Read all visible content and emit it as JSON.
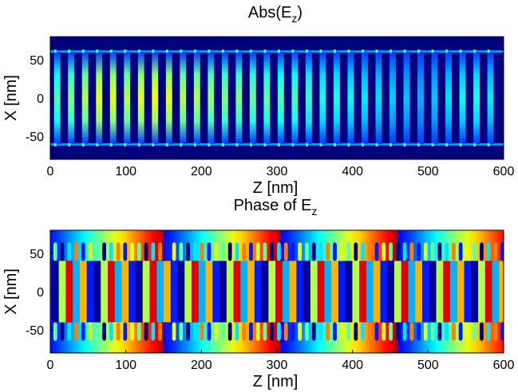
{
  "chart_data": [
    {
      "type": "heatmap",
      "title": "Abs(E",
      "title_subscript": "z",
      "title_suffix": ")",
      "xlabel": "Z [nm]",
      "ylabel": "X [nm]",
      "xlim": [
        0,
        600
      ],
      "ylim": [
        -80,
        80
      ],
      "xticks": [
        0,
        100,
        200,
        300,
        400,
        500,
        600
      ],
      "yticks": [
        50,
        0,
        -50
      ],
      "colormap": "jet",
      "waveguide_x": [
        -60,
        60
      ],
      "stripes": {
        "start_z": 5,
        "period_nm": 18.5,
        "count": 32
      },
      "stripe_peak_levels": [
        0.45,
        0.5,
        0.55,
        0.6,
        0.6,
        0.55,
        0.6,
        0.62,
        0.6,
        0.55,
        0.55,
        0.52,
        0.5,
        0.5,
        0.48,
        0.47,
        0.45,
        0.45,
        0.42,
        0.4,
        0.4,
        0.38,
        0.36,
        0.35,
        0.33,
        0.32,
        0.3,
        0.32,
        0.35,
        0.38,
        0.4,
        0.36
      ]
    },
    {
      "type": "heatmap",
      "title": "Phase of E",
      "title_subscript": "z",
      "xlabel": "Z [nm]",
      "ylabel": "X [nm]",
      "xlim": [
        0,
        600
      ],
      "ylim": [
        -80,
        80
      ],
      "xticks": [
        0,
        100,
        200,
        300,
        400,
        500,
        600
      ],
      "yticks": [
        50,
        0,
        -50
      ],
      "colormap": "jet",
      "waveguide_x": [
        -60,
        60
      ],
      "outer_phase_period_nm": 155,
      "inner_stripe_period_nm": 18.5
    }
  ]
}
